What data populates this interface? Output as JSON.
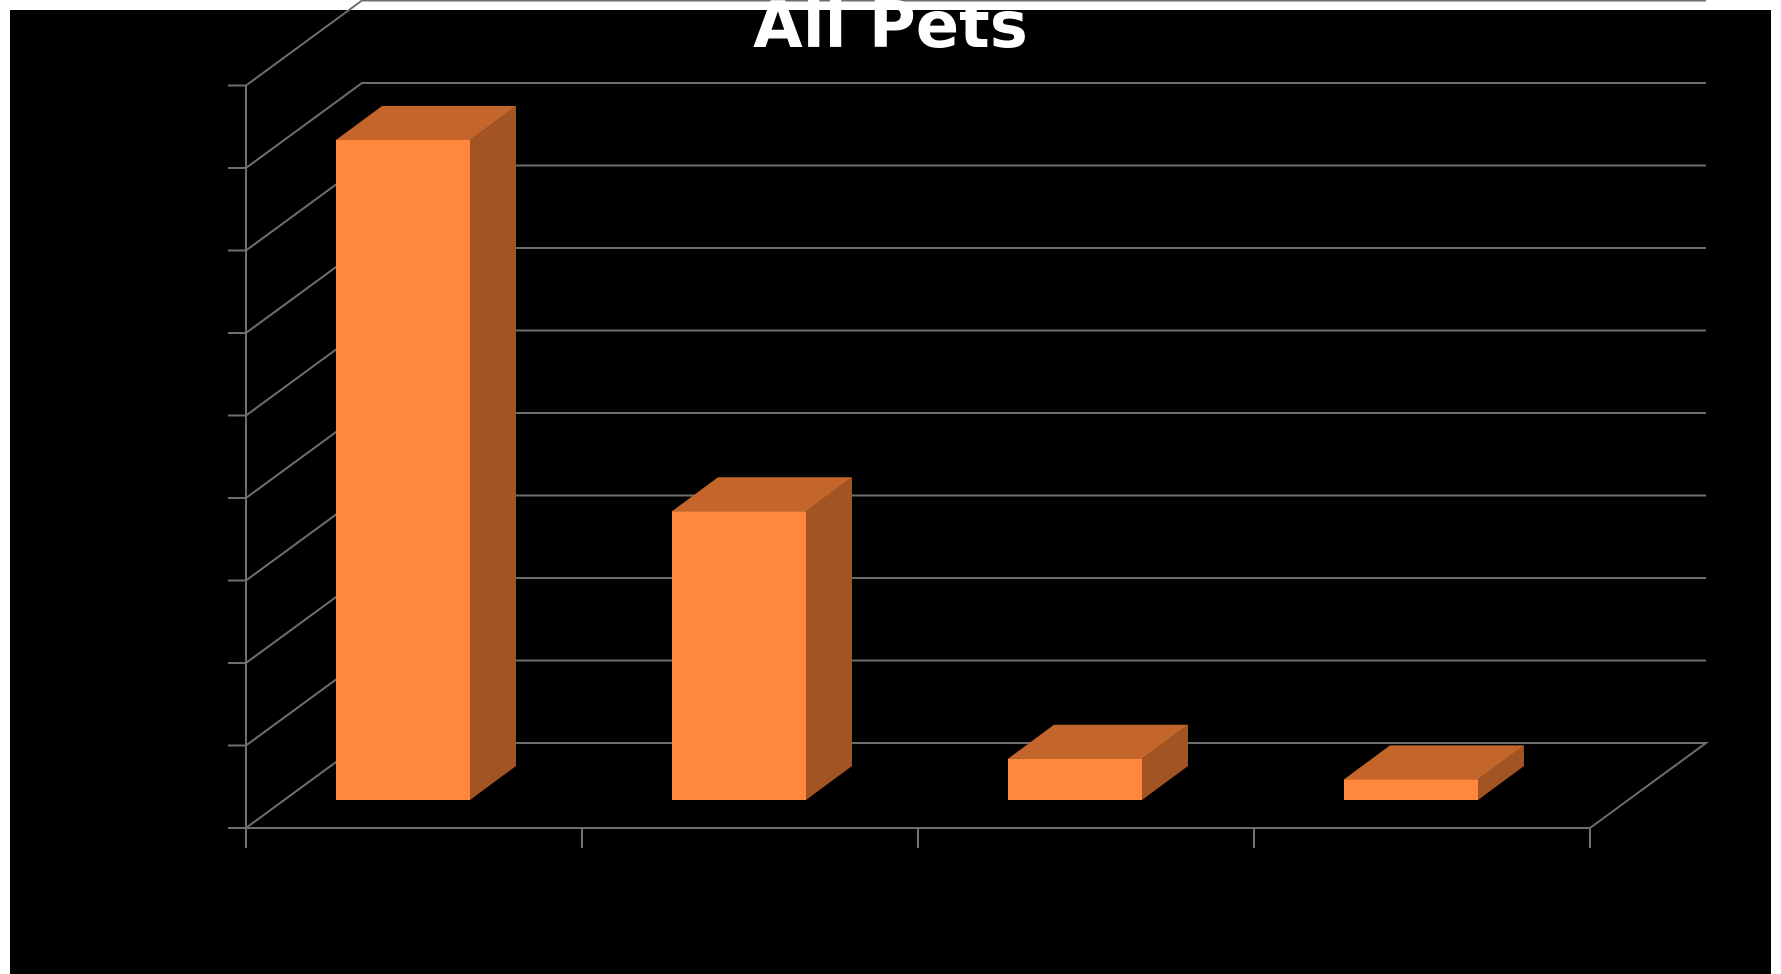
{
  "chart_data": {
    "type": "bar",
    "title": "All Pets",
    "categories": [
      "",
      "",
      "",
      ""
    ],
    "values": [
      80,
      35,
      5,
      2.5
    ],
    "ylim": [
      0,
      90
    ],
    "y_ticks": [
      0,
      10,
      20,
      30,
      40,
      50,
      60,
      70,
      80,
      90
    ],
    "grid": true,
    "legend": "none",
    "style": "3d-column"
  },
  "colors": {
    "background": "#000000",
    "bar_front": "#ff883c",
    "bar_top": "#c4662b",
    "bar_side": "#a25523",
    "grid": "#6e6e6e"
  }
}
